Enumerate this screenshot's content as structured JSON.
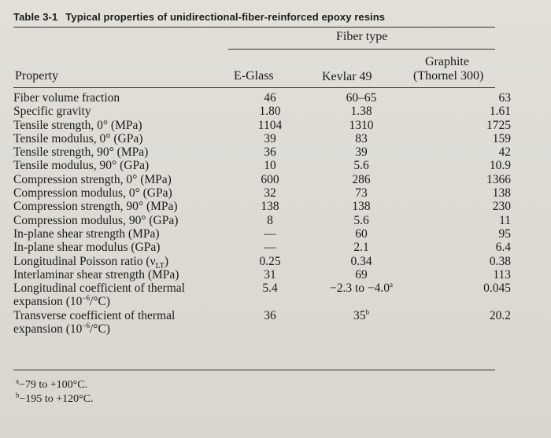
{
  "table": {
    "number": "Table 3-1",
    "title": "Typical properties of unidirectional-fiber-reinforced epoxy resins",
    "group_header": "Fiber type",
    "columns": {
      "property": "Property",
      "eglass": "E-Glass",
      "kevlar": "Kevlar 49",
      "graphite_line1": "Graphite",
      "graphite_line2": "(Thornel 300)"
    },
    "rows": [
      {
        "property": "Fiber volume fraction",
        "eglass": "46",
        "kevlar": "60–65",
        "graphite": "63"
      },
      {
        "property": "Specific gravity",
        "eglass": "1.80",
        "kevlar": "1.38",
        "graphite": "1.61"
      },
      {
        "property": "Tensile strength, 0° (MPa)",
        "eglass": "1104",
        "kevlar": "1310",
        "graphite": "1725"
      },
      {
        "property": "Tensile modulus, 0° (GPa)",
        "eglass": "39",
        "kevlar": "83",
        "graphite": "159"
      },
      {
        "property": "Tensile strength, 90° (MPa)",
        "eglass": "36",
        "kevlar": "39",
        "graphite": "42"
      },
      {
        "property": "Tensile modulus, 90° (GPa)",
        "eglass": "10",
        "kevlar": "5.6",
        "graphite": "10.9"
      },
      {
        "property": "Compression strength, 0° (MPa)",
        "eglass": "600",
        "kevlar": "286",
        "graphite": "1366"
      },
      {
        "property": "Compression modulus, 0° (GPa)",
        "eglass": "32",
        "kevlar": "73",
        "graphite": "138"
      },
      {
        "property": "Compression strength, 90° (MPa)",
        "eglass": "138",
        "kevlar": "138",
        "graphite": "230"
      },
      {
        "property": "Compression modulus, 90° (GPa)",
        "eglass": "8",
        "kevlar": "5.6",
        "graphite": "11"
      },
      {
        "property": "In-plane shear strength (MPa)",
        "eglass": "—",
        "kevlar": "60",
        "graphite": "95"
      },
      {
        "property": "In-plane shear modulus (GPa)",
        "eglass": "—",
        "kevlar": "2.1",
        "graphite": "6.4"
      },
      {
        "property": "Longitudinal Poisson ratio (ν",
        "property_sub": "LT",
        "property_tail": ")",
        "eglass": "0.25",
        "kevlar": "0.34",
        "graphite": "0.38"
      },
      {
        "property": "Interlaminar shear strength (MPa)",
        "eglass": "31",
        "kevlar": "69",
        "graphite": "113"
      },
      {
        "property": "Longitudinal coefficient of thermal",
        "eglass": "5.4",
        "kevlar": "−2.3 to −4.0",
        "kevlar_sup": "a",
        "graphite": "0.045"
      },
      {
        "property": "expansion (10",
        "property_sup": "−6",
        "property_tail": "/°C)",
        "indent": true,
        "eglass": "",
        "kevlar": "",
        "graphite": ""
      },
      {
        "property": "Transverse coefficient of thermal",
        "eglass": "36",
        "kevlar": "35",
        "kevlar_sup": "b",
        "graphite": "20.2"
      },
      {
        "property": "expansion (10",
        "property_sup": "−6",
        "property_tail": "/°C)",
        "indent": true,
        "eglass": "",
        "kevlar": "",
        "graphite": ""
      }
    ],
    "footnotes": [
      {
        "mark": "a",
        "text": "−79 to +100°C."
      },
      {
        "mark": "b",
        "text": "−195 to +120°C."
      }
    ]
  }
}
